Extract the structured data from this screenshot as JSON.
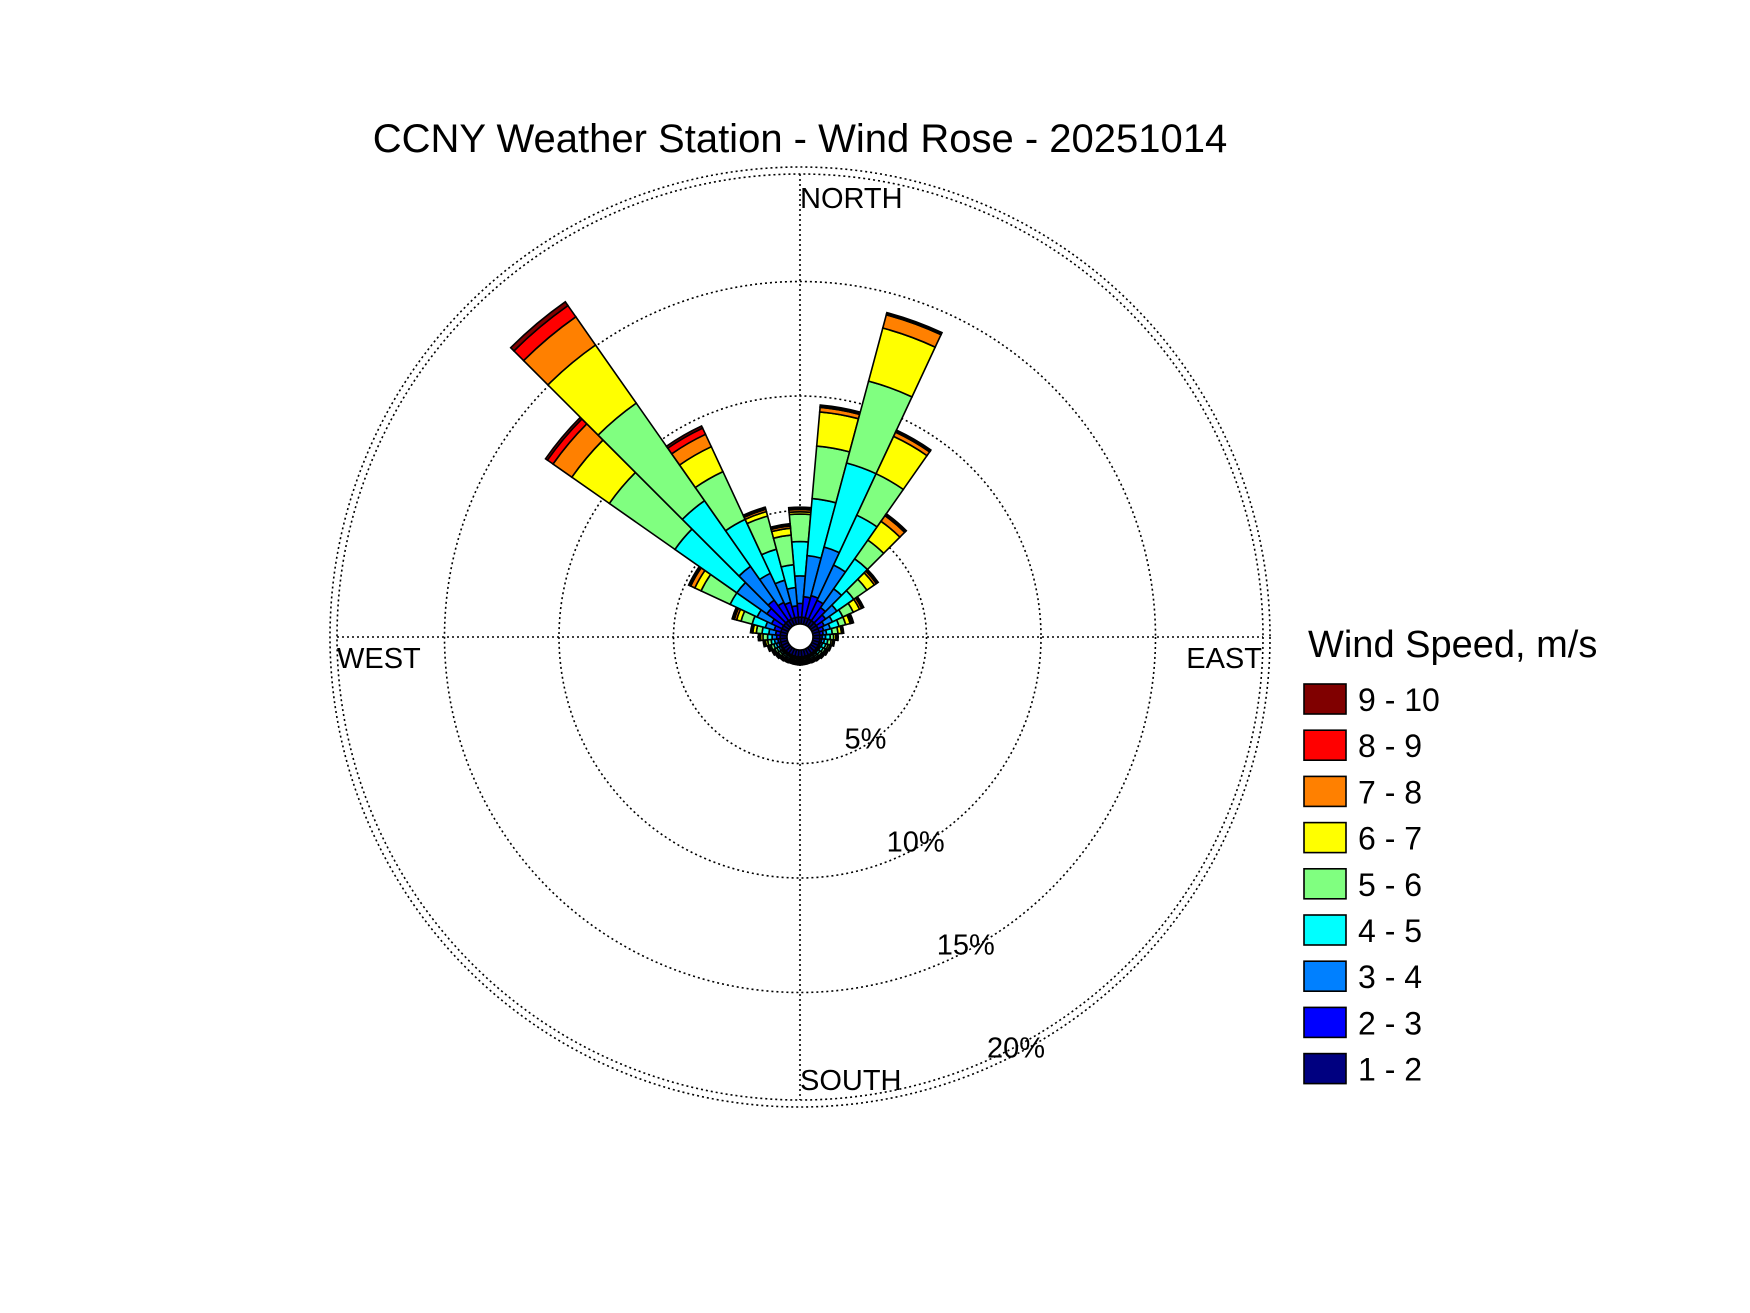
{
  "chart_data": {
    "type": "wind-rose",
    "title": "CCNY Weather Station - Wind Rose - 20251014",
    "direction_labels": {
      "north": "NORTH",
      "east": "EAST",
      "south": "SOUTH",
      "west": "WEST"
    },
    "radial_unit": "%",
    "radial_ticks": [
      5,
      10,
      15,
      20
    ],
    "radial_tick_labels": [
      "5%",
      "10%",
      "15%",
      "20%"
    ],
    "radial_max": 20,
    "grid": true,
    "legend": {
      "title": "Wind Speed, m/s",
      "placement": "right",
      "bins": [
        {
          "label": "9 - 10",
          "color": "#800000"
        },
        {
          "label": "8 - 9",
          "color": "#ff0000"
        },
        {
          "label": "7 - 8",
          "color": "#ff8000"
        },
        {
          "label": "6 - 7",
          "color": "#ffff00"
        },
        {
          "label": "5 - 6",
          "color": "#80ff80"
        },
        {
          "label": "4 - 5",
          "color": "#00ffff"
        },
        {
          "label": "3 - 4",
          "color": "#0080ff"
        },
        {
          "label": "2 - 3",
          "color": "#0000ff"
        },
        {
          "label": "1 - 2",
          "color": "#000080"
        }
      ]
    },
    "speed_bins": [
      "1 - 2",
      "2 - 3",
      "3 - 4",
      "4 - 5",
      "5 - 6",
      "6 - 7",
      "7 - 8",
      "8 - 9",
      "9 - 10"
    ],
    "bin_colors": [
      "#000080",
      "#0000ff",
      "#0080ff",
      "#00ffff",
      "#80ff80",
      "#ffff00",
      "#ff8000",
      "#ff0000",
      "#800000"
    ],
    "sector_width_deg": 10,
    "sectors": [
      {
        "direction": 0,
        "cumulative": [
          0.3,
          0.9,
          2.1,
          3.6,
          4.8,
          4.9,
          5.0,
          5.05,
          5.1
        ]
      },
      {
        "direction": 10,
        "cumulative": [
          0.3,
          1.2,
          3.0,
          5.5,
          7.8,
          9.3,
          9.5,
          9.55,
          9.6
        ]
      },
      {
        "direction": 20,
        "cumulative": [
          0.3,
          1.3,
          3.5,
          7.3,
          11.0,
          13.4,
          14.0,
          14.05,
          14.1
        ]
      },
      {
        "direction": 30,
        "cumulative": [
          0.3,
          1.2,
          2.9,
          5.3,
          7.3,
          9.1,
          9.3,
          9.35,
          9.4
        ]
      },
      {
        "direction": 40,
        "cumulative": [
          0.3,
          1.0,
          2.0,
          3.6,
          4.6,
          5.6,
          5.9,
          5.95,
          6.0
        ]
      },
      {
        "direction": 50,
        "cumulative": [
          0.3,
          0.8,
          1.4,
          2.3,
          3.0,
          3.4,
          3.5,
          3.55,
          3.6
        ]
      },
      {
        "direction": 60,
        "cumulative": [
          0.3,
          0.6,
          1.0,
          1.5,
          2.0,
          2.3,
          2.4,
          2.45,
          2.5
        ]
      },
      {
        "direction": 70,
        "cumulative": [
          0.3,
          0.5,
          0.8,
          1.2,
          1.5,
          1.7,
          1.75,
          1.8,
          1.85
        ]
      },
      {
        "direction": 80,
        "cumulative": [
          0.3,
          0.45,
          0.6,
          0.85,
          1.1,
          1.25,
          1.3,
          1.32,
          1.35
        ]
      },
      {
        "direction": 90,
        "cumulative": [
          0.3,
          0.4,
          0.55,
          0.75,
          0.9,
          1.0,
          1.05,
          1.08,
          1.1
        ]
      },
      {
        "direction": 100,
        "cumulative": [
          0.3,
          0.38,
          0.5,
          0.65,
          0.8,
          0.88,
          0.92,
          0.94,
          0.95
        ]
      },
      {
        "direction": 110,
        "cumulative": [
          0.3,
          0.36,
          0.45,
          0.6,
          0.7,
          0.78,
          0.82,
          0.84,
          0.85
        ]
      },
      {
        "direction": 120,
        "cumulative": [
          0.3,
          0.35,
          0.42,
          0.55,
          0.65,
          0.72,
          0.76,
          0.78,
          0.8
        ]
      },
      {
        "direction": 130,
        "cumulative": [
          0.3,
          0.34,
          0.4,
          0.5,
          0.6,
          0.66,
          0.7,
          0.72,
          0.75
        ]
      },
      {
        "direction": 140,
        "cumulative": [
          0.3,
          0.34,
          0.4,
          0.48,
          0.56,
          0.62,
          0.66,
          0.68,
          0.7
        ]
      },
      {
        "direction": 150,
        "cumulative": [
          0.3,
          0.34,
          0.4,
          0.48,
          0.55,
          0.6,
          0.63,
          0.65,
          0.67
        ]
      },
      {
        "direction": 160,
        "cumulative": [
          0.3,
          0.34,
          0.4,
          0.47,
          0.53,
          0.58,
          0.61,
          0.63,
          0.65
        ]
      },
      {
        "direction": 170,
        "cumulative": [
          0.3,
          0.34,
          0.4,
          0.47,
          0.53,
          0.58,
          0.61,
          0.63,
          0.65
        ]
      },
      {
        "direction": 180,
        "cumulative": [
          0.3,
          0.34,
          0.4,
          0.47,
          0.53,
          0.58,
          0.61,
          0.63,
          0.65
        ]
      },
      {
        "direction": 190,
        "cumulative": [
          0.3,
          0.34,
          0.4,
          0.47,
          0.53,
          0.58,
          0.61,
          0.63,
          0.65
        ]
      },
      {
        "direction": 200,
        "cumulative": [
          0.3,
          0.34,
          0.4,
          0.47,
          0.53,
          0.58,
          0.61,
          0.63,
          0.65
        ]
      },
      {
        "direction": 210,
        "cumulative": [
          0.3,
          0.34,
          0.4,
          0.48,
          0.55,
          0.6,
          0.63,
          0.65,
          0.67
        ]
      },
      {
        "direction": 220,
        "cumulative": [
          0.3,
          0.34,
          0.4,
          0.48,
          0.56,
          0.62,
          0.66,
          0.68,
          0.7
        ]
      },
      {
        "direction": 230,
        "cumulative": [
          0.3,
          0.35,
          0.42,
          0.5,
          0.6,
          0.66,
          0.7,
          0.72,
          0.75
        ]
      },
      {
        "direction": 240,
        "cumulative": [
          0.3,
          0.36,
          0.45,
          0.55,
          0.65,
          0.72,
          0.76,
          0.78,
          0.8
        ]
      },
      {
        "direction": 250,
        "cumulative": [
          0.3,
          0.38,
          0.5,
          0.62,
          0.75,
          0.82,
          0.86,
          0.88,
          0.9
        ]
      },
      {
        "direction": 260,
        "cumulative": [
          0.3,
          0.4,
          0.55,
          0.7,
          0.85,
          0.95,
          1.0,
          1.02,
          1.05
        ]
      },
      {
        "direction": 270,
        "cumulative": [
          0.3,
          0.45,
          0.65,
          0.85,
          1.05,
          1.15,
          1.2,
          1.22,
          1.25
        ]
      },
      {
        "direction": 280,
        "cumulative": [
          0.3,
          0.5,
          0.8,
          1.1,
          1.35,
          1.5,
          1.55,
          1.57,
          1.6
        ]
      },
      {
        "direction": 290,
        "cumulative": [
          0.3,
          0.6,
          1.0,
          1.6,
          2.1,
          2.3,
          2.4,
          2.45,
          2.5
        ]
      },
      {
        "direction": 300,
        "cumulative": [
          0.3,
          0.8,
          1.5,
          2.8,
          4.2,
          4.5,
          4.7,
          4.75,
          4.8
        ]
      },
      {
        "direction": 310,
        "cumulative": [
          0.3,
          1.2,
          2.8,
          6.1,
          9.6,
          11.6,
          12.6,
          12.9,
          13.0
        ]
      },
      {
        "direction": 320,
        "cumulative": [
          0.3,
          1.4,
          3.2,
          6.7,
          11.9,
          15.0,
          16.5,
          17.1,
          17.3
        ]
      },
      {
        "direction": 330,
        "cumulative": [
          0.3,
          1.1,
          2.5,
          5.1,
          7.4,
          8.6,
          9.2,
          9.5,
          9.6
        ]
      },
      {
        "direction": 340,
        "cumulative": [
          0.3,
          1.0,
          2.0,
          3.4,
          4.9,
          5.1,
          5.2,
          5.25,
          5.3
        ]
      },
      {
        "direction": 350,
        "cumulative": [
          0.3,
          0.8,
          1.6,
          2.6,
          3.9,
          4.2,
          4.3,
          4.35,
          4.4
        ]
      }
    ]
  }
}
